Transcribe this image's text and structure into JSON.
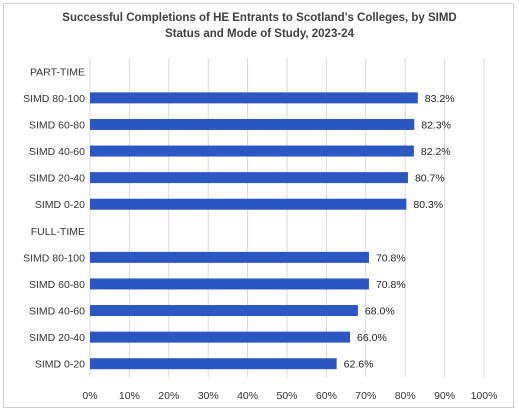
{
  "chart_data": {
    "type": "bar",
    "orientation": "horizontal",
    "title_lines": [
      "Successful Completions of HE Entrants to Scotland's Colleges, by SIMD",
      "Status and Mode of Study, 2023-24"
    ],
    "categories": [
      "PART-TIME",
      "SIMD 80-100",
      "SIMD 60-80",
      "SIMD 40-60",
      "SIMD 20-40",
      "SIMD 0-20",
      "FULL-TIME",
      "SIMD 80-100",
      "SIMD 60-80",
      "SIMD 40-60",
      "SIMD 20-40",
      "SIMD 0-20"
    ],
    "values": [
      null,
      83.2,
      82.3,
      82.2,
      80.7,
      80.3,
      null,
      70.8,
      70.8,
      68.0,
      66.0,
      62.6
    ],
    "data_labels": [
      "",
      "83.2%",
      "82.3%",
      "82.2%",
      "80.7%",
      "80.3%",
      "",
      "70.8%",
      "70.8%",
      "68.0%",
      "66.0%",
      "62.6%"
    ],
    "xlim": [
      0,
      100
    ],
    "xticks": [
      "0%",
      "10%",
      "20%",
      "30%",
      "40%",
      "50%",
      "60%",
      "70%",
      "80%",
      "90%",
      "100%"
    ],
    "grid": true,
    "bar_color": "#2a57c2",
    "grid_color": "#d9d9d9"
  }
}
